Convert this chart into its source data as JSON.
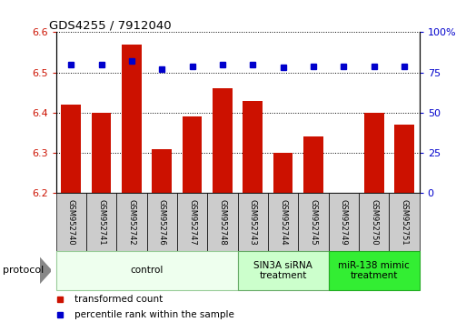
{
  "title": "GDS4255 / 7912040",
  "samples": [
    "GSM952740",
    "GSM952741",
    "GSM952742",
    "GSM952746",
    "GSM952747",
    "GSM952748",
    "GSM952743",
    "GSM952744",
    "GSM952745",
    "GSM952749",
    "GSM952750",
    "GSM952751"
  ],
  "transformed_counts": [
    6.42,
    6.4,
    6.57,
    6.31,
    6.39,
    6.46,
    6.43,
    6.3,
    6.34,
    6.2,
    6.4,
    6.37
  ],
  "percentile_ranks": [
    80,
    80,
    82,
    77,
    79,
    80,
    80,
    78,
    79,
    79,
    79,
    79
  ],
  "bar_color": "#cc1100",
  "dot_color": "#0000cc",
  "ylim_left": [
    6.2,
    6.6
  ],
  "ylim_right": [
    0,
    100
  ],
  "yticks_left": [
    6.2,
    6.3,
    6.4,
    6.5,
    6.6
  ],
  "yticks_right": [
    0,
    25,
    50,
    75,
    100
  ],
  "groups": [
    {
      "label": "control",
      "start": 0,
      "end": 5,
      "color": "#eeffee",
      "edge_color": "#99cc99"
    },
    {
      "label": "SIN3A siRNA\ntreatment",
      "start": 6,
      "end": 8,
      "color": "#ccffcc",
      "edge_color": "#66aa66"
    },
    {
      "label": "miR-138 mimic\ntreatment",
      "start": 9,
      "end": 11,
      "color": "#33ee33",
      "edge_color": "#22aa22"
    }
  ],
  "legend_transformed": "transformed count",
  "legend_percentile": "percentile rank within the sample",
  "protocol_label": "protocol",
  "background_color": "#ffffff",
  "bar_bottom": 6.2,
  "bar_width": 0.65
}
